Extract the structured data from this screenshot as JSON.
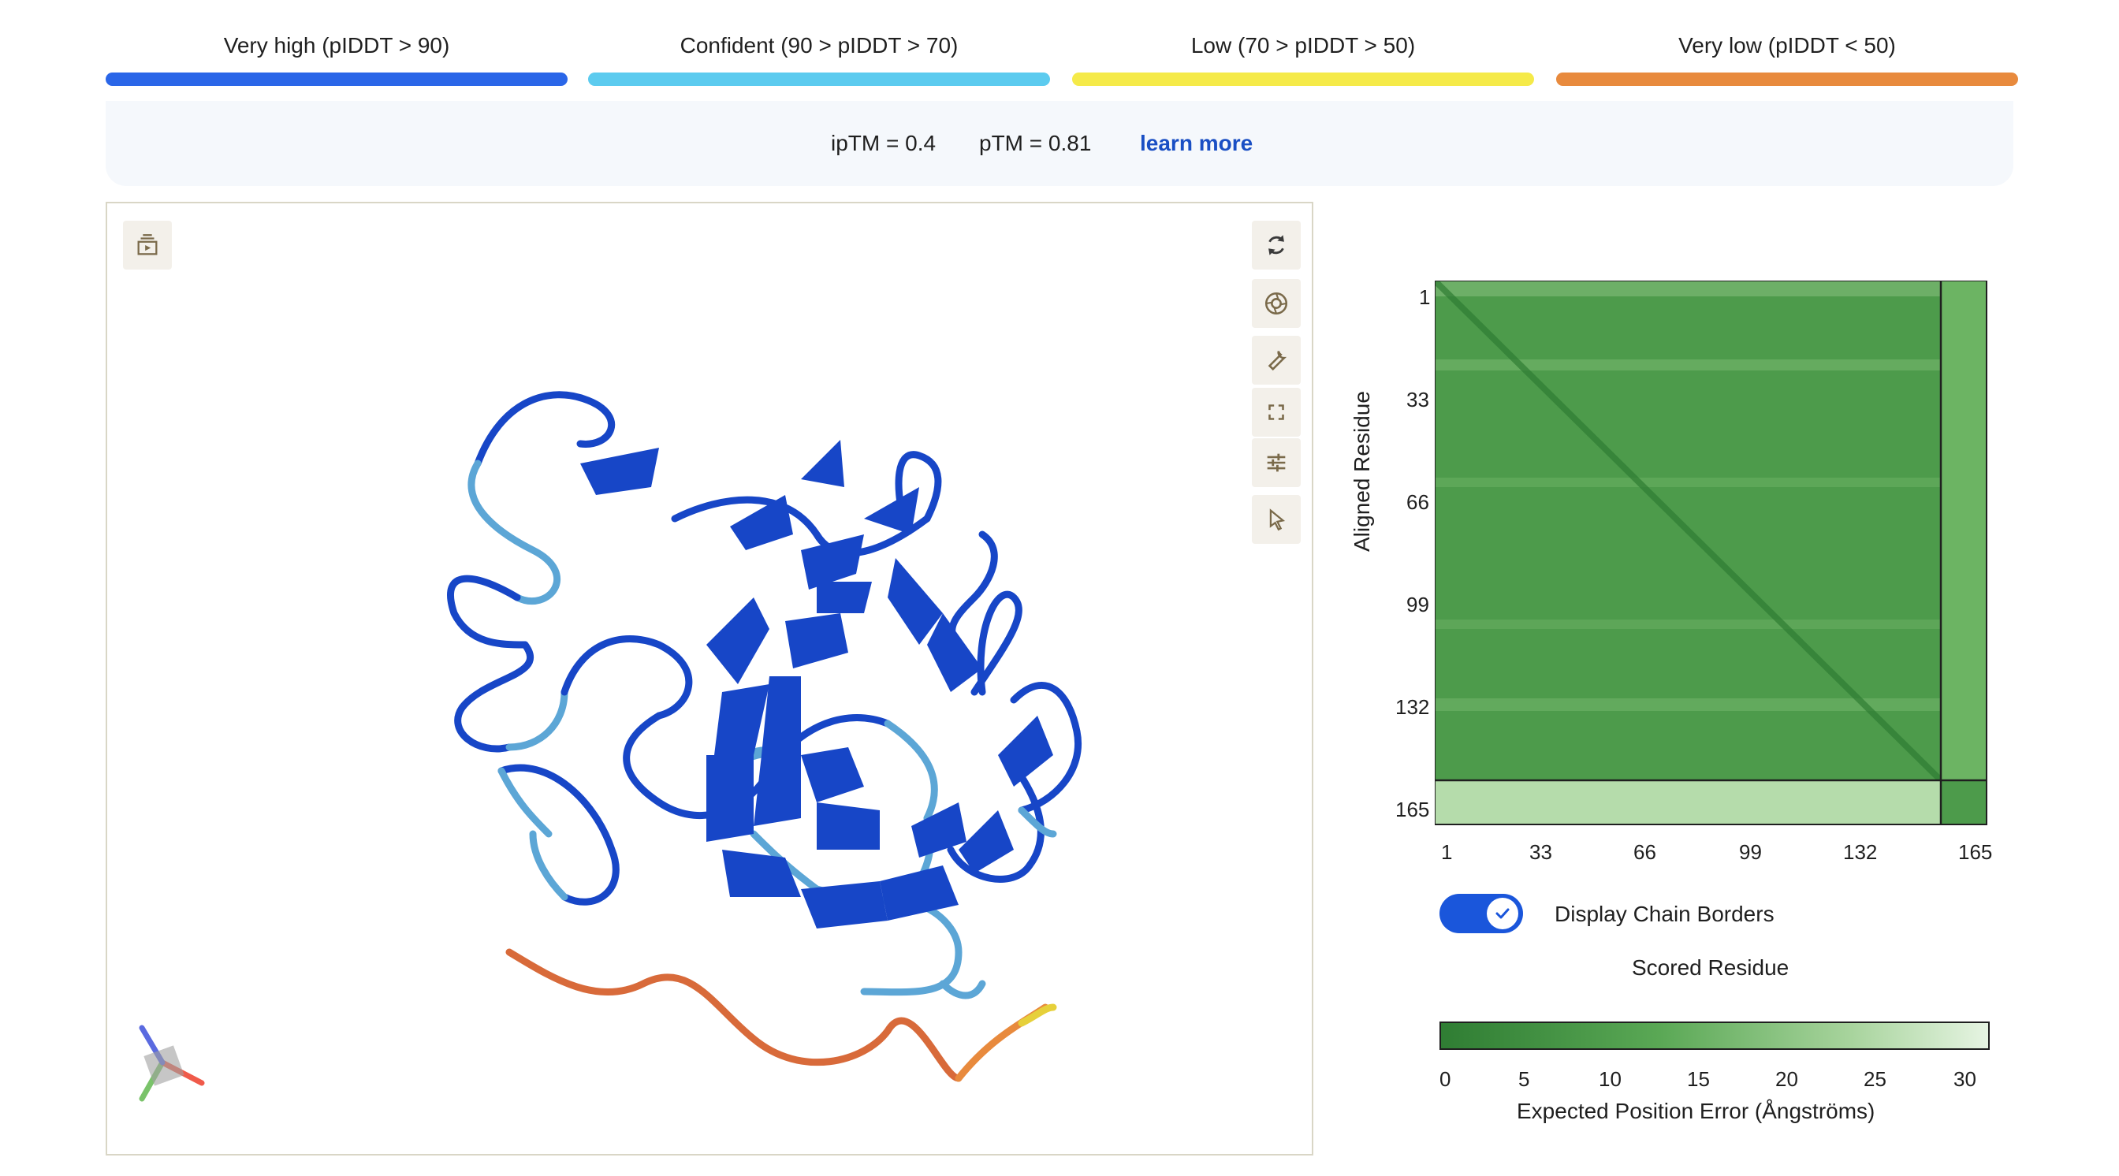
{
  "legend": [
    {
      "label": "Very high (pIDDT > 90)",
      "color": "#2a66e8"
    },
    {
      "label": "Confident (90 > pIDDT > 70)",
      "color": "#5ccbef"
    },
    {
      "label": "Low (70 > pIDDT > 50)",
      "color": "#f5ea49"
    },
    {
      "label": "Very low (pIDDT < 50)",
      "color": "#e88a3d"
    }
  ],
  "scores": {
    "iptm": "ipTM = 0.4",
    "ptm": "pTM = 0.81",
    "learn_more": "learn more"
  },
  "viewer": {
    "toolbar": [
      "rotate-icon",
      "camera-icon",
      "wrench-icon",
      "fullscreen-icon",
      "sliders-icon",
      "cursor-icon"
    ],
    "top_left_tool": "playback-icon"
  },
  "pae": {
    "y_label": "Aligned Residue",
    "x_label": "Scored Residue",
    "y_ticks": [
      "1",
      "33",
      "66",
      "99",
      "132",
      "165"
    ],
    "x_ticks": [
      "1",
      "33",
      "66",
      "99",
      "132",
      "165"
    ],
    "toggle_label": "Display Chain Borders",
    "toggle_on": true,
    "colorbar_ticks": [
      "0",
      "5",
      "10",
      "15",
      "20",
      "25",
      "30"
    ],
    "colorbar_label": "Expected Position Error (Ångströms)",
    "colors": {
      "low": "#2f7d33",
      "high": "#e6f4e2"
    }
  }
}
